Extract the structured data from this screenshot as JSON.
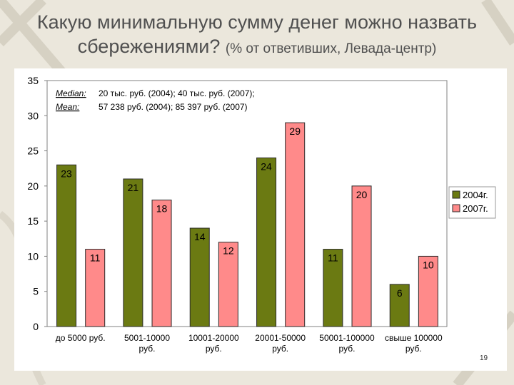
{
  "slide": {
    "title_main": "Какую минимальную сумму денег можно назвать",
    "title_line2": "сбережениями?",
    "title_sub": "(% от ответивших, Левада-центр)",
    "slide_number": "19"
  },
  "chart_data": {
    "type": "bar",
    "categories": [
      [
        "до 5000 руб."
      ],
      [
        "5001-10000",
        "руб."
      ],
      [
        "10001-20000",
        "руб."
      ],
      [
        "20001-50000",
        "руб."
      ],
      [
        "50001-100000",
        "руб."
      ],
      [
        "свыше 100000",
        "руб."
      ]
    ],
    "series": [
      {
        "name": "2004г.",
        "values": [
          23,
          21,
          14,
          24,
          11,
          6
        ],
        "color": "#6b7a12"
      },
      {
        "name": "2007г.",
        "values": [
          11,
          18,
          12,
          29,
          20,
          10
        ],
        "color": "#ff8a8a"
      }
    ],
    "ylim": [
      0,
      35
    ],
    "yticks": [
      0,
      5,
      10,
      15,
      20,
      25,
      30,
      35
    ],
    "grid": false,
    "legend_position": "right",
    "annotation": {
      "median_label": "Median:",
      "median_text": "20 тыс. руб. (2004); 40 тыс. руб. (2007);",
      "mean_label": "Mean:",
      "mean_text": "57 238 руб. (2004);  85 397 руб. (2007)"
    }
  }
}
